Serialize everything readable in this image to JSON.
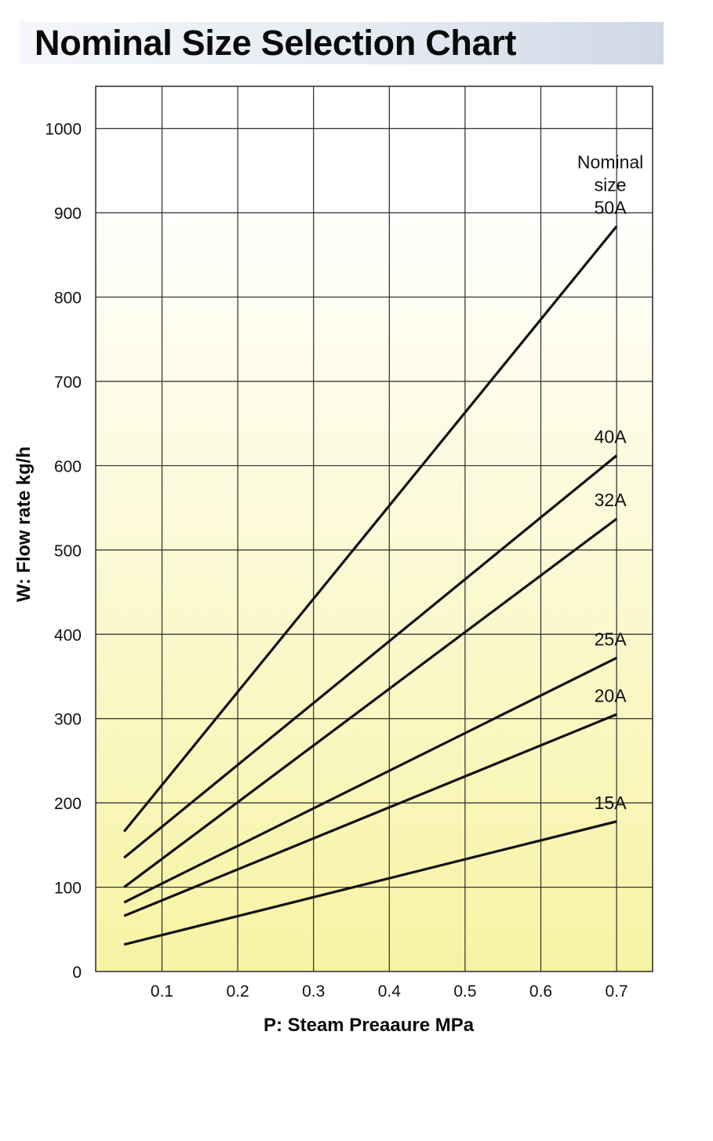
{
  "page": {
    "title": "Nominal Size Selection Chart"
  },
  "chart_data": {
    "type": "line",
    "title": "Nominal Size Selection Chart",
    "xlabel": "P: Steam Preaaure MPa",
    "ylabel": "W: Flow rate kg/h",
    "xlim": [
      0.0125,
      0.7475
    ],
    "ylim": [
      0,
      1050
    ],
    "x_ticks": [
      "0.1",
      "0.2",
      "0.3",
      "0.4",
      "0.5",
      "0.6",
      "0.7"
    ],
    "y_ticks": [
      "0",
      "100",
      "200",
      "300",
      "400",
      "500",
      "600",
      "700",
      "800",
      "900",
      "1000"
    ],
    "grid": true,
    "legend_heading": [
      "Nominal",
      "size"
    ],
    "series": [
      {
        "name": "15A",
        "x": [
          0.05,
          0.7
        ],
        "y": [
          32,
          178
        ]
      },
      {
        "name": "20A",
        "x": [
          0.05,
          0.7
        ],
        "y": [
          66,
          305
        ]
      },
      {
        "name": "25A",
        "x": [
          0.05,
          0.7
        ],
        "y": [
          82,
          372
        ]
      },
      {
        "name": "32A",
        "x": [
          0.05,
          0.7
        ],
        "y": [
          100,
          537
        ]
      },
      {
        "name": "40A",
        "x": [
          0.05,
          0.7
        ],
        "y": [
          135,
          612
        ]
      },
      {
        "name": "50A",
        "x": [
          0.05,
          0.7
        ],
        "y": [
          166,
          884
        ]
      }
    ],
    "colors": {
      "gradient_top": "#ffffff",
      "gradient_bottom": "#f7f3a4",
      "grid": "#2a2a2a",
      "line": "#111111"
    }
  }
}
